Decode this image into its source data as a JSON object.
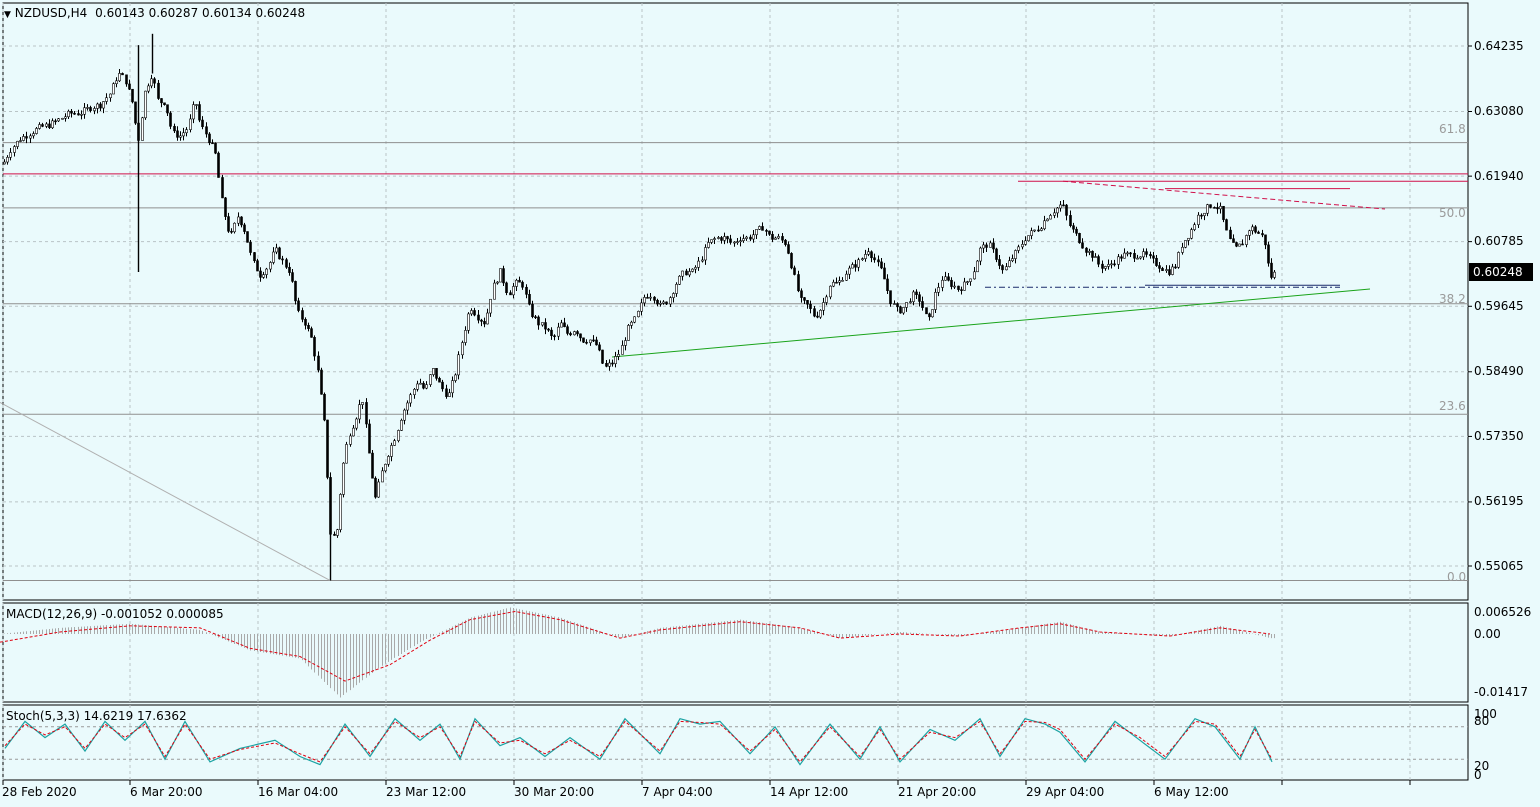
{
  "header": {
    "symbol": "NZDUSD,H4",
    "ohlc": "0.60143 0.60287 0.60134 0.60248"
  },
  "price_axis": {
    "ticks": [
      "0.64235",
      "0.63080",
      "0.61940",
      "0.60785",
      "0.59645",
      "0.58490",
      "0.57350",
      "0.56195",
      "0.55065"
    ],
    "current_price": "0.60248"
  },
  "fib_levels": [
    "61.8",
    "50.0",
    "38.2",
    "23.6",
    "0.0"
  ],
  "macd": {
    "label": "MACD(12,26,9) -0.001052 0.000085",
    "ticks": [
      "0.006526",
      "0.00",
      "-0.01417"
    ]
  },
  "stoch": {
    "label": "Stoch(5,3,3) 14.6219 17.6362",
    "ticks": [
      "100",
      "80",
      "20",
      "0"
    ]
  },
  "time_axis": [
    "28 Feb 2020",
    "6 Mar 20:00",
    "16 Mar 04:00",
    "23 Mar 12:00",
    "30 Mar 20:00",
    "7 Apr 04:00",
    "14 Apr 12:00",
    "21 Apr 20:00",
    "29 Apr 04:00",
    "6 May 12:00"
  ],
  "colors": {
    "background": "#eafafc",
    "candle": "#000000",
    "support_line": "#1aa31a",
    "resistance_line": "#d0104a",
    "macd_signal": "#e0000f",
    "stoch_main": "#1ba3a3",
    "stoch_signal": "#e0000f"
  },
  "chart_data": {
    "type": "candlestick",
    "symbol": "NZDUSD",
    "timeframe": "H4",
    "ylim": [
      0.5465,
      0.6465
    ],
    "close_path": [
      [
        0,
        0.6205
      ],
      [
        10,
        0.624
      ],
      [
        20,
        0.626
      ],
      [
        30,
        0.627
      ],
      [
        40,
        0.628
      ],
      [
        50,
        0.6285
      ],
      [
        60,
        0.6295
      ],
      [
        70,
        0.6305
      ],
      [
        80,
        0.6305
      ],
      [
        90,
        0.6315
      ],
      [
        100,
        0.632
      ],
      [
        110,
        0.634
      ],
      [
        118,
        0.6375
      ],
      [
        125,
        0.6365
      ],
      [
        132,
        0.6325
      ],
      [
        138,
        0.6255
      ],
      [
        145,
        0.6345
      ],
      [
        152,
        0.6375
      ],
      [
        158,
        0.6325
      ],
      [
        165,
        0.6325
      ],
      [
        172,
        0.627
      ],
      [
        180,
        0.6265
      ],
      [
        188,
        0.628
      ],
      [
        195,
        0.633
      ],
      [
        200,
        0.6285
      ],
      [
        207,
        0.6265
      ],
      [
        215,
        0.6235
      ],
      [
        222,
        0.6145
      ],
      [
        230,
        0.6085
      ],
      [
        238,
        0.6125
      ],
      [
        245,
        0.6095
      ],
      [
        252,
        0.6045
      ],
      [
        260,
        0.602
      ],
      [
        268,
        0.6035
      ],
      [
        275,
        0.6065
      ],
      [
        282,
        0.6045
      ],
      [
        290,
        0.6025
      ],
      [
        297,
        0.5955
      ],
      [
        305,
        0.5935
      ],
      [
        312,
        0.5905
      ],
      [
        318,
        0.5845
      ],
      [
        325,
        0.5745
      ],
      [
        330,
        0.5565
      ],
      [
        336,
        0.5555
      ],
      [
        342,
        0.5675
      ],
      [
        348,
        0.5735
      ],
      [
        355,
        0.5765
      ],
      [
        362,
        0.5805
      ],
      [
        368,
        0.5715
      ],
      [
        375,
        0.5625
      ],
      [
        382,
        0.5675
      ],
      [
        388,
        0.5705
      ],
      [
        395,
        0.5735
      ],
      [
        402,
        0.5775
      ],
      [
        410,
        0.5805
      ],
      [
        418,
        0.5835
      ],
      [
        425,
        0.5815
      ],
      [
        432,
        0.5855
      ],
      [
        440,
        0.5825
      ],
      [
        448,
        0.5805
      ],
      [
        455,
        0.5845
      ],
      [
        462,
        0.5905
      ],
      [
        470,
        0.5965
      ],
      [
        478,
        0.5945
      ],
      [
        485,
        0.5935
      ],
      [
        492,
        0.5995
      ],
      [
        500,
        0.6025
      ],
      [
        508,
        0.5985
      ],
      [
        515,
        0.6005
      ],
      [
        522,
        0.6005
      ],
      [
        530,
        0.5955
      ],
      [
        538,
        0.5935
      ],
      [
        546,
        0.5925
      ],
      [
        553,
        0.5905
      ],
      [
        560,
        0.5935
      ],
      [
        568,
        0.5915
      ],
      [
        575,
        0.5925
      ],
      [
        582,
        0.5905
      ],
      [
        590,
        0.5905
      ],
      [
        597,
        0.5895
      ],
      [
        604,
        0.5855
      ],
      [
        612,
        0.5865
      ],
      [
        620,
        0.5885
      ],
      [
        628,
        0.5925
      ],
      [
        636,
        0.5945
      ],
      [
        645,
        0.5985
      ],
      [
        652,
        0.5985
      ],
      [
        660,
        0.5965
      ],
      [
        668,
        0.5975
      ],
      [
        676,
        0.6005
      ],
      [
        684,
        0.6025
      ],
      [
        692,
        0.6025
      ],
      [
        700,
        0.6045
      ],
      [
        708,
        0.6075
      ],
      [
        716,
        0.6085
      ],
      [
        724,
        0.6085
      ],
      [
        732,
        0.6075
      ],
      [
        740,
        0.6085
      ],
      [
        748,
        0.6085
      ],
      [
        756,
        0.6095
      ],
      [
        763,
        0.6105
      ],
      [
        770,
        0.6085
      ],
      [
        778,
        0.6085
      ],
      [
        786,
        0.6075
      ],
      [
        793,
        0.6025
      ],
      [
        800,
        0.5975
      ],
      [
        808,
        0.5965
      ],
      [
        815,
        0.5945
      ],
      [
        822,
        0.5965
      ],
      [
        830,
        0.6005
      ],
      [
        838,
        0.6005
      ],
      [
        846,
        0.6025
      ],
      [
        853,
        0.6035
      ],
      [
        860,
        0.6045
      ],
      [
        868,
        0.6065
      ],
      [
        875,
        0.6045
      ],
      [
        882,
        0.6025
      ],
      [
        890,
        0.5975
      ],
      [
        898,
        0.5955
      ],
      [
        905,
        0.5965
      ],
      [
        912,
        0.5985
      ],
      [
        920,
        0.5975
      ],
      [
        928,
        0.5935
      ],
      [
        935,
        0.5985
      ],
      [
        942,
        0.6015
      ],
      [
        950,
        0.6005
      ],
      [
        958,
        0.5995
      ],
      [
        966,
        0.6005
      ],
      [
        973,
        0.6025
      ],
      [
        980,
        0.6065
      ],
      [
        988,
        0.6075
      ],
      [
        995,
        0.6055
      ],
      [
        1003,
        0.6025
      ],
      [
        1010,
        0.6045
      ],
      [
        1018,
        0.6065
      ],
      [
        1025,
        0.6085
      ],
      [
        1032,
        0.6095
      ],
      [
        1040,
        0.6105
      ],
      [
        1048,
        0.6125
      ],
      [
        1055,
        0.6135
      ],
      [
        1062,
        0.6145
      ],
      [
        1070,
        0.6105
      ],
      [
        1078,
        0.6085
      ],
      [
        1085,
        0.6065
      ],
      [
        1092,
        0.6055
      ],
      [
        1100,
        0.6035
      ],
      [
        1108,
        0.6035
      ],
      [
        1115,
        0.6045
      ],
      [
        1123,
        0.6055
      ],
      [
        1130,
        0.6055
      ],
      [
        1138,
        0.6055
      ],
      [
        1145,
        0.6055
      ],
      [
        1152,
        0.6045
      ],
      [
        1160,
        0.6035
      ],
      [
        1168,
        0.6025
      ],
      [
        1175,
        0.6035
      ],
      [
        1182,
        0.6075
      ],
      [
        1190,
        0.6095
      ],
      [
        1198,
        0.6125
      ],
      [
        1205,
        0.6135
      ],
      [
        1212,
        0.6145
      ],
      [
        1220,
        0.6135
      ],
      [
        1228,
        0.6085
      ],
      [
        1235,
        0.6065
      ],
      [
        1242,
        0.6075
      ],
      [
        1250,
        0.6105
      ],
      [
        1257,
        0.6095
      ],
      [
        1264,
        0.6085
      ],
      [
        1270,
        0.6015
      ],
      [
        1276,
        0.6025
      ]
    ],
    "support_trendline": [
      [
        612,
        0.5875
      ],
      [
        1370,
        0.5995
      ]
    ],
    "resistance_horizontal": {
      "y": 0.6185,
      "x": [
        1018,
        1540
      ]
    },
    "resistance_top": [
      [
        1020,
        0.6185
      ],
      [
        1350,
        0.6172
      ]
    ],
    "resistance_trendline": [
      [
        1063,
        0.6185
      ],
      [
        1385,
        0.6136
      ]
    ],
    "support_dashed": {
      "y": 0.5998,
      "x": [
        985,
        1340
      ]
    },
    "fib_grid": [
      {
        "level": "61.8",
        "price": 0.6253
      },
      {
        "level": "50.0",
        "price": 0.6138
      },
      {
        "level": "38.2",
        "price": 0.5969
      },
      {
        "level": "23.6",
        "price": 0.5774
      },
      {
        "level": "0.0",
        "price": 0.5481
      }
    ],
    "macd": {
      "ylim": [
        -0.0175,
        0.0085
      ],
      "histogram_path": [
        [
          0,
          0.0
        ],
        [
          60,
          0.0015
        ],
        [
          130,
          0.0025
        ],
        [
          200,
          0.001
        ],
        [
          250,
          -0.004
        ],
        [
          300,
          -0.006
        ],
        [
          340,
          -0.0155
        ],
        [
          380,
          -0.008
        ],
        [
          420,
          -0.002
        ],
        [
          470,
          0.004
        ],
        [
          510,
          0.0065
        ],
        [
          560,
          0.004
        ],
        [
          620,
          -0.001
        ],
        [
          660,
          0.0015
        ],
        [
          740,
          0.0035
        ],
        [
          800,
          0.0015
        ],
        [
          840,
          -0.001
        ],
        [
          900,
          0.0005
        ],
        [
          960,
          -0.0005
        ],
        [
          1020,
          0.0015
        ],
        [
          1060,
          0.003
        ],
        [
          1100,
          0.0005
        ],
        [
          1170,
          -0.0005
        ],
        [
          1220,
          0.002
        ],
        [
          1270,
          -0.001
        ]
      ],
      "signal_path": [
        [
          0,
          -0.002
        ],
        [
          60,
          0.0005
        ],
        [
          130,
          0.002
        ],
        [
          200,
          0.0015
        ],
        [
          250,
          -0.0035
        ],
        [
          300,
          -0.0055
        ],
        [
          345,
          -0.0115
        ],
        [
          390,
          -0.0075
        ],
        [
          430,
          -0.0015
        ],
        [
          470,
          0.0035
        ],
        [
          515,
          0.0055
        ],
        [
          560,
          0.0035
        ],
        [
          620,
          -0.001
        ],
        [
          660,
          0.001
        ],
        [
          740,
          0.003
        ],
        [
          800,
          0.0015
        ],
        [
          840,
          -0.001
        ],
        [
          900,
          0.0
        ],
        [
          960,
          -0.0005
        ],
        [
          1020,
          0.0015
        ],
        [
          1060,
          0.0025
        ],
        [
          1100,
          0.0005
        ],
        [
          1170,
          -0.0005
        ],
        [
          1220,
          0.0015
        ],
        [
          1270,
          0.0
        ]
      ]
    },
    "stoch": {
      "levels": [
        80,
        20
      ],
      "main_path": [
        [
          5,
          40
        ],
        [
          25,
          90
        ],
        [
          45,
          60
        ],
        [
          65,
          85
        ],
        [
          85,
          35
        ],
        [
          105,
          90
        ],
        [
          125,
          55
        ],
        [
          145,
          90
        ],
        [
          165,
          20
        ],
        [
          185,
          90
        ],
        [
          210,
          15
        ],
        [
          240,
          40
        ],
        [
          275,
          55
        ],
        [
          300,
          25
        ],
        [
          320,
          10
        ],
        [
          345,
          85
        ],
        [
          370,
          25
        ],
        [
          395,
          95
        ],
        [
          420,
          55
        ],
        [
          440,
          85
        ],
        [
          460,
          20
        ],
        [
          475,
          95
        ],
        [
          500,
          45
        ],
        [
          520,
          60
        ],
        [
          545,
          25
        ],
        [
          570,
          60
        ],
        [
          600,
          20
        ],
        [
          625,
          95
        ],
        [
          660,
          30
        ],
        [
          680,
          95
        ],
        [
          700,
          85
        ],
        [
          720,
          90
        ],
        [
          750,
          30
        ],
        [
          775,
          80
        ],
        [
          800,
          10
        ],
        [
          830,
          85
        ],
        [
          860,
          20
        ],
        [
          880,
          80
        ],
        [
          900,
          15
        ],
        [
          930,
          75
        ],
        [
          955,
          55
        ],
        [
          980,
          95
        ],
        [
          1000,
          25
        ],
        [
          1025,
          95
        ],
        [
          1045,
          85
        ],
        [
          1060,
          70
        ],
        [
          1085,
          15
        ],
        [
          1115,
          90
        ],
        [
          1140,
          55
        ],
        [
          1165,
          20
        ],
        [
          1195,
          95
        ],
        [
          1215,
          80
        ],
        [
          1240,
          20
        ],
        [
          1255,
          80
        ],
        [
          1272,
          15
        ]
      ],
      "signal_path": [
        [
          5,
          45
        ],
        [
          25,
          85
        ],
        [
          45,
          65
        ],
        [
          65,
          80
        ],
        [
          85,
          40
        ],
        [
          105,
          85
        ],
        [
          125,
          60
        ],
        [
          145,
          85
        ],
        [
          165,
          25
        ],
        [
          185,
          85
        ],
        [
          210,
          20
        ],
        [
          240,
          38
        ],
        [
          275,
          50
        ],
        [
          300,
          30
        ],
        [
          320,
          15
        ],
        [
          345,
          80
        ],
        [
          370,
          30
        ],
        [
          395,
          90
        ],
        [
          420,
          60
        ],
        [
          440,
          80
        ],
        [
          460,
          25
        ],
        [
          475,
          90
        ],
        [
          500,
          50
        ],
        [
          520,
          55
        ],
        [
          545,
          30
        ],
        [
          570,
          55
        ],
        [
          600,
          25
        ],
        [
          625,
          90
        ],
        [
          660,
          35
        ],
        [
          680,
          90
        ],
        [
          700,
          88
        ],
        [
          720,
          85
        ],
        [
          750,
          35
        ],
        [
          775,
          75
        ],
        [
          800,
          15
        ],
        [
          830,
          80
        ],
        [
          860,
          25
        ],
        [
          880,
          75
        ],
        [
          900,
          20
        ],
        [
          930,
          70
        ],
        [
          955,
          60
        ],
        [
          980,
          90
        ],
        [
          1000,
          30
        ],
        [
          1025,
          90
        ],
        [
          1045,
          88
        ],
        [
          1060,
          75
        ],
        [
          1085,
          20
        ],
        [
          1115,
          85
        ],
        [
          1140,
          60
        ],
        [
          1165,
          25
        ],
        [
          1195,
          90
        ],
        [
          1215,
          85
        ],
        [
          1240,
          25
        ],
        [
          1255,
          75
        ],
        [
          1272,
          20
        ]
      ]
    },
    "long_diagonal": [
      [
        0,
        0.5795
      ],
      [
        330,
        0.5481
      ]
    ],
    "spike_wick": {
      "x": 138,
      "low": 0.6025,
      "high": 0.6425
    },
    "low_wick": {
      "x": 330,
      "low": 0.5481
    }
  }
}
